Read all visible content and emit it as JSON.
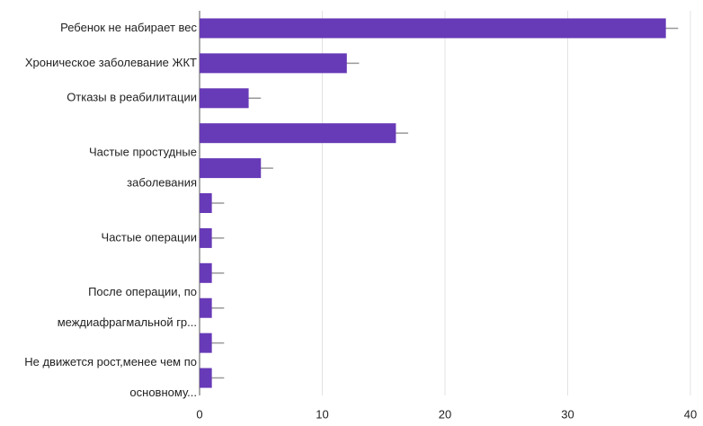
{
  "chart_data": {
    "type": "bar",
    "orientation": "horizontal",
    "categories": [
      [
        "Ребенок не набирает вес"
      ],
      [
        "Хроническое заболевание ЖКТ"
      ],
      [
        "Отказы в реабилитации"
      ],
      null,
      [
        "Частые простудные",
        "заболевания"
      ],
      null,
      [
        "Частые операции"
      ],
      null,
      [
        "После операции, по",
        "междиафрагмальной гр..."
      ],
      null,
      [
        "Не движется рост,менее чем по",
        "основному..."
      ]
    ],
    "values": [
      38,
      12,
      4,
      16,
      5,
      1,
      1,
      1,
      1,
      1,
      1
    ],
    "errors": [
      1,
      1,
      1,
      1,
      1,
      1,
      1,
      1,
      1,
      1,
      1
    ],
    "color": "#673ab7",
    "error_color": "#999999",
    "xlim": [
      0,
      40
    ],
    "xticks": [
      0,
      10,
      20,
      30,
      40
    ],
    "grid": true
  }
}
